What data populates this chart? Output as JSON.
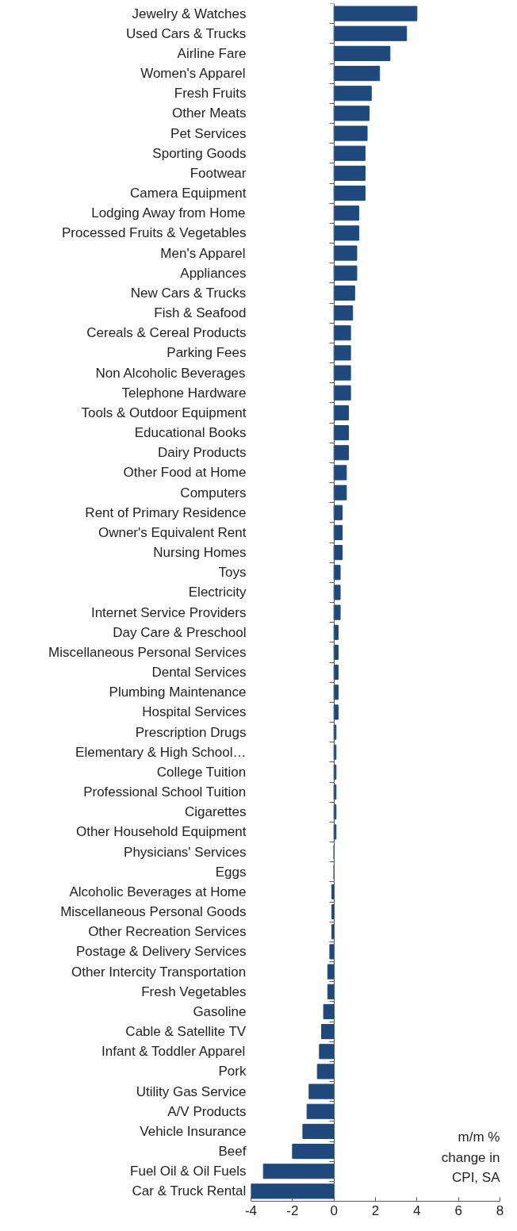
{
  "chart_data": {
    "type": "bar",
    "orientation": "horizontal",
    "categories": [
      "Jewelry & Watches",
      "Used Cars & Trucks",
      "Airline Fare",
      "Women's Apparel",
      "Fresh Fruits",
      "Other Meats",
      "Pet Services",
      "Sporting Goods",
      "Footwear",
      "Camera Equipment",
      "Lodging Away from Home",
      "Processed Fruits & Vegetables",
      "Men's Apparel",
      "Appliances",
      "New Cars & Trucks",
      "Fish & Seafood",
      "Cereals & Cereal Products",
      "Parking Fees",
      "Non Alcoholic Beverages",
      "Telephone Hardware",
      "Tools & Outdoor Equipment",
      "Educational Books",
      "Dairy Products",
      "Other Food at Home",
      "Computers",
      "Rent of Primary Residence",
      "Owner's Equivalent Rent",
      "Nursing Homes",
      "Toys",
      "Electricity",
      "Internet Service Providers",
      "Day Care & Preschool",
      "Miscellaneous Personal Services",
      "Dental Services",
      "Plumbing Maintenance",
      "Hospital Services",
      "Prescription Drugs",
      "Elementary & High School…",
      "College Tuition",
      "Professional School Tuition",
      "Cigarettes",
      "Other Household Equipment",
      "Physicians' Services",
      "Eggs",
      "Alcoholic Beverages at Home",
      "Miscellaneous Personal Goods",
      "Other Recreation Services",
      "Postage & Delivery Services",
      "Other Intercity Transportation",
      "Fresh Vegetables",
      "Gasoline",
      "Cable & Satellite TV",
      "Infant & Toddler Apparel",
      "Pork",
      "Utility Gas Service",
      "A/V Products",
      "Vehicle Insurance",
      "Beef",
      "Fuel Oil & Oil Fuels",
      "Car & Truck Rental"
    ],
    "values": [
      4.0,
      3.5,
      2.7,
      2.2,
      1.8,
      1.7,
      1.6,
      1.5,
      1.5,
      1.5,
      1.2,
      1.2,
      1.1,
      1.1,
      1.0,
      0.9,
      0.8,
      0.8,
      0.8,
      0.8,
      0.7,
      0.7,
      0.7,
      0.6,
      0.6,
      0.4,
      0.4,
      0.4,
      0.3,
      0.3,
      0.3,
      0.2,
      0.2,
      0.2,
      0.2,
      0.2,
      0.1,
      0.1,
      0.1,
      0.1,
      0.1,
      0.1,
      0,
      0,
      -0.1,
      -0.1,
      -0.1,
      -0.2,
      -0.3,
      -0.3,
      -0.5,
      -0.6,
      -0.7,
      -0.8,
      -1.2,
      -1.3,
      -1.5,
      -2.0,
      -3.4,
      -4.0
    ],
    "color": "#1f497d",
    "xlim": [
      -4,
      8
    ],
    "xticks": [
      -4,
      -2,
      0,
      2,
      4,
      6,
      8
    ],
    "ref_lines": [
      {
        "axis": "x",
        "value": 0
      }
    ],
    "annotations": [
      "m/m % change in CPI, SA"
    ]
  }
}
